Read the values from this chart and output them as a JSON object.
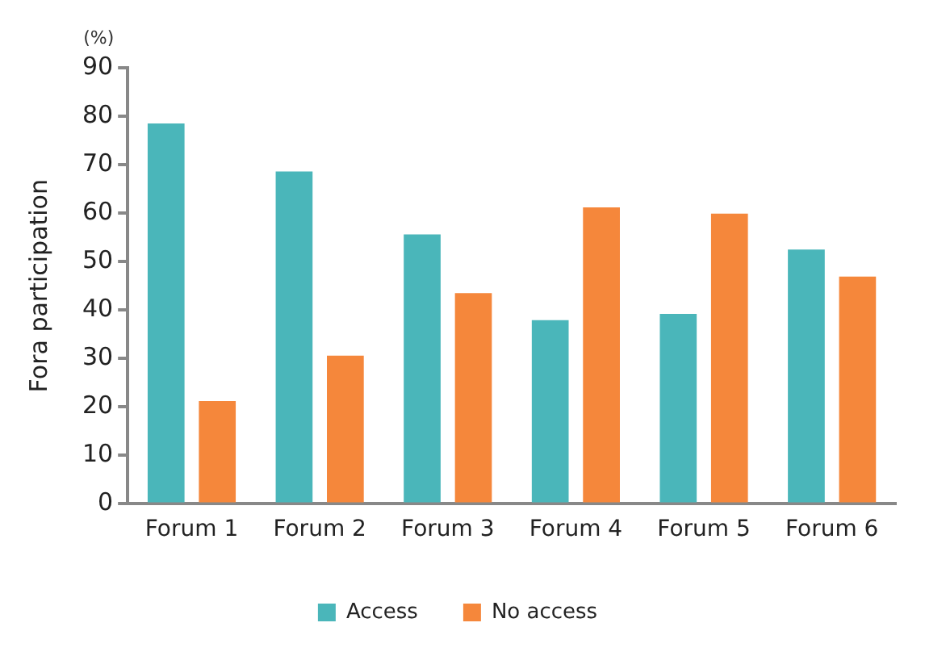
{
  "chart_data": {
    "type": "bar",
    "ylabel": "Fora participation",
    "annotations": [
      "(%)"
    ],
    "categories": [
      "Forum 1",
      "Forum 2",
      "Forum 3",
      "Forum 4",
      "Forum 5",
      "Forum 6"
    ],
    "series": [
      {
        "name": "Access",
        "color": "#4ab6ba",
        "values": [
          78.5,
          68.6,
          55.6,
          37.9,
          39.2,
          52.5
        ]
      },
      {
        "name": "No access",
        "color": "#f5873b",
        "values": [
          21.2,
          30.6,
          43.5,
          61.2,
          59.9,
          46.9
        ]
      }
    ],
    "ylim": [
      0,
      90
    ],
    "yticks": [
      0,
      10,
      20,
      30,
      40,
      50,
      60,
      70,
      80,
      90
    ],
    "grid": false,
    "legend": "bottom"
  }
}
